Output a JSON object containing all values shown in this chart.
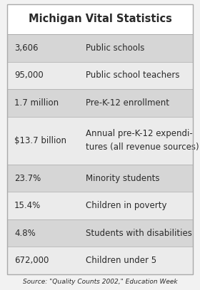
{
  "title": "Michigan Vital Statistics",
  "rows": [
    {
      "value": "3,606",
      "label": "Public schools",
      "shaded": true
    },
    {
      "value": "95,000",
      "label": "Public school teachers",
      "shaded": false
    },
    {
      "value": "1.7 million",
      "label": "Pre-K-12 enrollment",
      "shaded": true
    },
    {
      "value": "$13.7 billion",
      "label": "Annual pre-K-12 expendi-\ntures (all revenue sources)",
      "shaded": false
    },
    {
      "value": "23.7%",
      "label": "Minority students",
      "shaded": true
    },
    {
      "value": "15.4%",
      "label": "Children in poverty",
      "shaded": false
    },
    {
      "value": "4.8%",
      "label": "Students with disabilities",
      "shaded": true
    },
    {
      "value": "672,000",
      "label": "Children under 5",
      "shaded": false
    }
  ],
  "source": "Source: \"Quality Counts 2002,\" Education Week",
  "bg_color": "#f2f2f2",
  "shaded_color": "#d6d6d6",
  "unshaded_color": "#ebebeb",
  "title_bg": "#ffffff",
  "border_color": "#aaaaaa",
  "text_color": "#2a2a2a",
  "title_fontsize": 10.5,
  "cell_fontsize": 8.5,
  "source_fontsize": 6.5,
  "fig_width": 2.8,
  "fig_height": 4.07,
  "dpi": 100
}
